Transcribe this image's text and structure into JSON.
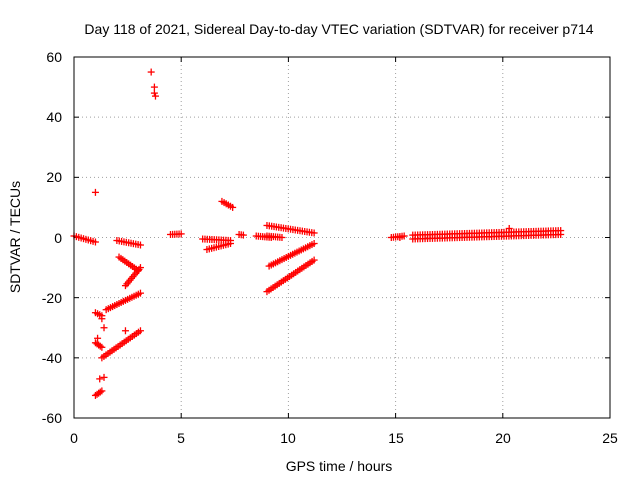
{
  "chart_data": {
    "type": "scatter",
    "title": "Day 118 of 2021, Sidereal Day-to-day VTEC variation (SDTVAR) for receiver p714",
    "xlabel": "GPS time / hours",
    "ylabel": "SDTVAR / TECUs",
    "xlim": [
      0,
      25
    ],
    "ylim": [
      -60,
      60
    ],
    "xticks": [
      "0",
      "5",
      "10",
      "15",
      "20",
      "25"
    ],
    "yticks": [
      "-60",
      "-40",
      "-20",
      "0",
      "20",
      "40",
      "60"
    ],
    "grid": true,
    "marker": "+",
    "color": "#ff0000",
    "series": [
      {
        "name": "segments",
        "segments": [
          {
            "x": [
              0.0,
              1.0
            ],
            "y": [
              0.5,
              -1.5
            ]
          },
          {
            "x": [
              1.0,
              1.3
            ],
            "y": [
              -52.5,
              -51.0
            ]
          },
          {
            "x": [
              1.0,
              1.3
            ],
            "y": [
              -35.0,
              -36.5
            ]
          },
          {
            "x": [
              1.0,
              1.3
            ],
            "y": [
              -25.0,
              -26.0
            ]
          },
          {
            "x": [
              1.3,
              3.1
            ],
            "y": [
              -40.0,
              -31.0
            ]
          },
          {
            "x": [
              1.5,
              3.1
            ],
            "y": [
              -24.0,
              -18.5
            ]
          },
          {
            "x": [
              2.0,
              3.1
            ],
            "y": [
              -1.0,
              -2.5
            ]
          },
          {
            "x": [
              2.1,
              3.0
            ],
            "y": [
              -6.5,
              -11.0
            ]
          },
          {
            "x": [
              2.4,
              3.1
            ],
            "y": [
              -16.0,
              -10.0
            ]
          },
          {
            "x": [
              4.5,
              5.0
            ],
            "y": [
              1.0,
              1.2
            ]
          },
          {
            "x": [
              6.0,
              7.3
            ],
            "y": [
              -0.5,
              -1.0
            ]
          },
          {
            "x": [
              6.2,
              7.3
            ],
            "y": [
              -4.0,
              -2.0
            ]
          },
          {
            "x": [
              6.9,
              7.4
            ],
            "y": [
              12.0,
              10.0
            ]
          },
          {
            "x": [
              7.7,
              7.9
            ],
            "y": [
              1.0,
              0.8
            ]
          },
          {
            "x": [
              8.5,
              9.2
            ],
            "y": [
              0.5,
              0.0
            ]
          },
          {
            "x": [
              9.0,
              11.2
            ],
            "y": [
              4.0,
              1.5
            ]
          },
          {
            "x": [
              9.0,
              11.2
            ],
            "y": [
              -18.0,
              -7.5
            ]
          },
          {
            "x": [
              9.1,
              11.2
            ],
            "y": [
              -9.5,
              -2.0
            ]
          },
          {
            "x": [
              9.0,
              9.7
            ],
            "y": [
              0.5,
              0.0
            ]
          },
          {
            "x": [
              14.8,
              15.4
            ],
            "y": [
              0.0,
              0.5
            ]
          },
          {
            "x": [
              15.8,
              22.7
            ],
            "y": [
              -0.5,
              1.0
            ]
          },
          {
            "x": [
              15.8,
              22.7
            ],
            "y": [
              0.8,
              2.3
            ]
          }
        ],
        "isolated_points": [
          {
            "x": 1.0,
            "y": 15.0
          },
          {
            "x": 3.6,
            "y": 55.0
          },
          {
            "x": 3.75,
            "y": 50.0
          },
          {
            "x": 3.75,
            "y": 48.0
          },
          {
            "x": 3.8,
            "y": 47.0
          },
          {
            "x": 1.2,
            "y": -47.0
          },
          {
            "x": 1.4,
            "y": -46.5
          },
          {
            "x": 1.4,
            "y": -30.0
          },
          {
            "x": 1.3,
            "y": -27.0
          },
          {
            "x": 1.1,
            "y": -33.5
          },
          {
            "x": 2.4,
            "y": -31.0
          },
          {
            "x": 15.2,
            "y": 0.0
          },
          {
            "x": 20.3,
            "y": 3.0
          }
        ]
      }
    ]
  }
}
